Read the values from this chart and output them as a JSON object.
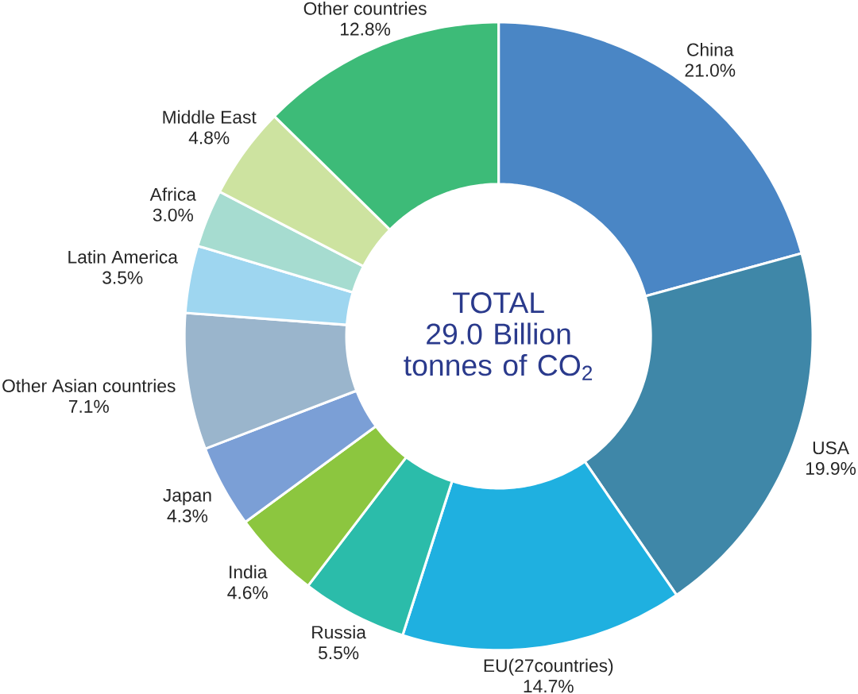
{
  "chart_data": {
    "type": "donut",
    "title": "TOTAL 29.0 Billion tonnes of CO$_{2}$",
    "categories": [
      "China",
      "USA",
      "EU(27countries)",
      "Russia",
      "India",
      "Japan",
      "Other Asian countries",
      "Latin America",
      "Africa",
      "Middle East",
      "Other countries"
    ],
    "values": [
      21.0,
      19.9,
      14.7,
      5.5,
      4.6,
      4.3,
      7.1,
      3.5,
      3.0,
      4.8,
      12.8
    ],
    "value_labels": [
      "21.0%",
      "19.9%",
      "14.7%",
      "5.5%",
      "4.6%",
      "4.3%",
      "7.1%",
      "3.5%",
      "3.0%",
      "4.8%",
      "12.8%"
    ],
    "colors": [
      "#4a86c5",
      "#3f87a8",
      "#1fb0e0",
      "#2bbcaa",
      "#8cc63f",
      "#7b9fd6",
      "#9ab5cc",
      "#9ed6f0",
      "#a6dcd0",
      "#cde3a0",
      "#3dbb78"
    ]
  }
}
